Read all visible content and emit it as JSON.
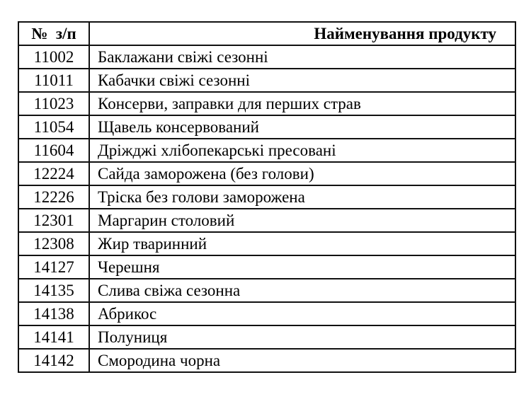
{
  "page": {
    "background_color": "#ffffff",
    "text_color": "#000000",
    "border_color": "#111111"
  },
  "table": {
    "header": {
      "number_col": "№  з/п",
      "name_col": "Найменування продукту"
    },
    "rows": [
      {
        "code": "11002",
        "name": "Баклажани свіжі сезонні"
      },
      {
        "code": "11011",
        "name": "Кабачки свіжі сезонні"
      },
      {
        "code": "11023",
        "name": "Консерви, заправки для перших страв"
      },
      {
        "code": "11054",
        "name": "Щавель консервований"
      },
      {
        "code": "11604",
        "name": "Дріжджі хлібопекарські пресовані"
      },
      {
        "code": "12224",
        "name": "Сайда заморожена (без голови)"
      },
      {
        "code": "12226",
        "name": "Тріска без голови заморожена"
      },
      {
        "code": "12301",
        "name": "Маргарин столовий"
      },
      {
        "code": "12308",
        "name": "Жир тваринний"
      },
      {
        "code": "14127",
        "name": "Черешня"
      },
      {
        "code": "14135",
        "name": "Слива свіжа сезонна"
      },
      {
        "code": "14138",
        "name": "Абрикос"
      },
      {
        "code": "14141",
        "name": "Полуниця"
      },
      {
        "code": "14142",
        "name": "Смородина чорна"
      }
    ]
  }
}
